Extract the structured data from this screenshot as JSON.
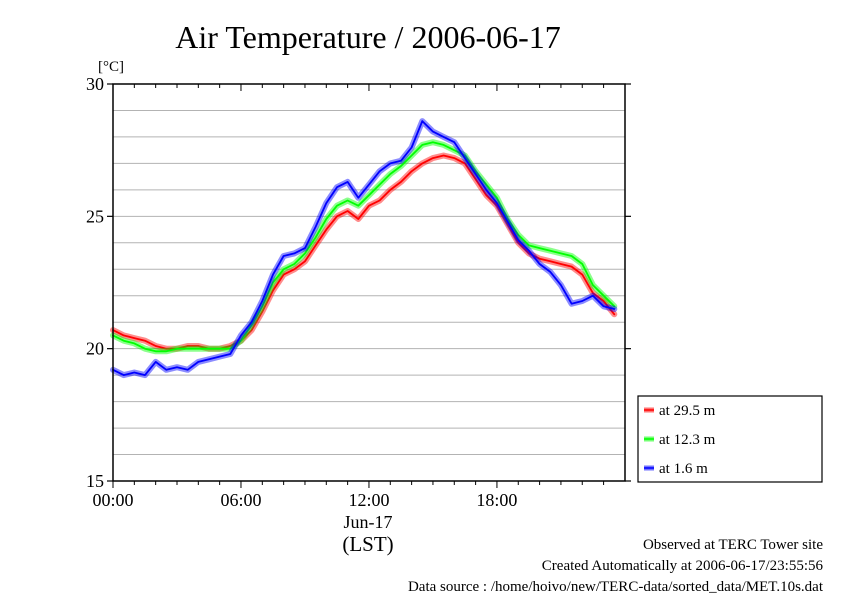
{
  "chart_data": {
    "type": "line",
    "title": "Air Temperature / 2006-06-17",
    "ylabel": "[°C]",
    "xlabel": "(LST)",
    "ylim": [
      15,
      30
    ],
    "xlim": [
      0,
      23.5
    ],
    "yticks": [
      15,
      20,
      25,
      30
    ],
    "xticks": [
      {
        "value": 0,
        "label": "00:00"
      },
      {
        "value": 6,
        "label": "06:00"
      },
      {
        "value": 12,
        "label": "12:00"
      },
      {
        "value": 18,
        "label": "18:00"
      }
    ],
    "date_label": "Jun-17",
    "grid": "horizontal",
    "legend_position": "right",
    "x": [
      0,
      0.5,
      1,
      1.5,
      2,
      2.5,
      3,
      3.5,
      4,
      4.5,
      5,
      5.5,
      6,
      6.5,
      7,
      7.5,
      8,
      8.5,
      9,
      9.5,
      10,
      10.5,
      11,
      11.5,
      12,
      12.5,
      13,
      13.5,
      14,
      14.5,
      15,
      15.5,
      16,
      16.5,
      17,
      17.5,
      18,
      18.5,
      19,
      19.5,
      20,
      20.5,
      21,
      21.5,
      22,
      22.5,
      23,
      23.5
    ],
    "series": [
      {
        "name": "at 29.5 m",
        "color": "#ff0000",
        "values": [
          20.7,
          20.5,
          20.4,
          20.3,
          20.1,
          20.0,
          20.0,
          20.1,
          20.1,
          20.0,
          20.0,
          20.1,
          20.3,
          20.7,
          21.4,
          22.2,
          22.8,
          23.0,
          23.3,
          23.9,
          24.5,
          25.0,
          25.2,
          24.9,
          25.4,
          25.6,
          26.0,
          26.3,
          26.7,
          27.0,
          27.2,
          27.3,
          27.2,
          27.0,
          26.4,
          25.8,
          25.4,
          24.7,
          24.0,
          23.6,
          23.4,
          23.3,
          23.2,
          23.1,
          22.8,
          22.1,
          21.8,
          21.3
        ]
      },
      {
        "name": "at 12.3 m",
        "color": "#00ff00",
        "values": [
          20.5,
          20.3,
          20.2,
          20.0,
          19.9,
          19.9,
          20.0,
          20.0,
          20.0,
          20.0,
          20.0,
          20.0,
          20.3,
          20.9,
          21.6,
          22.5,
          23.0,
          23.2,
          23.6,
          24.2,
          24.9,
          25.4,
          25.6,
          25.4,
          25.8,
          26.2,
          26.6,
          26.9,
          27.3,
          27.7,
          27.8,
          27.7,
          27.5,
          27.3,
          26.7,
          26.2,
          25.7,
          24.9,
          24.3,
          23.9,
          23.8,
          23.7,
          23.6,
          23.5,
          23.2,
          22.4,
          22.0,
          21.6
        ]
      },
      {
        "name": "at 1.6 m",
        "color": "#0000ff",
        "values": [
          19.2,
          19.0,
          19.1,
          19.0,
          19.5,
          19.2,
          19.3,
          19.2,
          19.5,
          19.6,
          19.7,
          19.8,
          20.5,
          21.0,
          21.8,
          22.8,
          23.5,
          23.6,
          23.8,
          24.6,
          25.5,
          26.1,
          26.3,
          25.7,
          26.2,
          26.7,
          27.0,
          27.1,
          27.6,
          28.6,
          28.2,
          28.0,
          27.8,
          27.2,
          26.6,
          26.0,
          25.5,
          24.8,
          24.1,
          23.7,
          23.2,
          22.9,
          22.4,
          21.7,
          21.8,
          22.0,
          21.6,
          21.5
        ]
      }
    ]
  },
  "footer": {
    "site": "Observed at TERC Tower site",
    "created": "Created Automatically at 2006-06-17/23:55:56",
    "source": "Data source : /home/hoivo/new/TERC-data/sorted_data/MET.10s.dat"
  }
}
